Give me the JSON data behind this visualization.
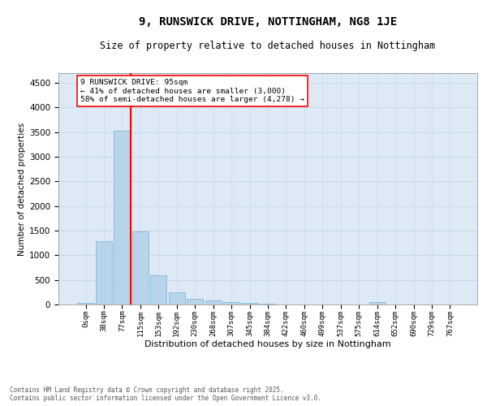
{
  "title": "9, RUNSWICK DRIVE, NOTTINGHAM, NG8 1JE",
  "subtitle": "Size of property relative to detached houses in Nottingham",
  "xlabel": "Distribution of detached houses by size in Nottingham",
  "ylabel": "Number of detached properties",
  "bar_labels": [
    "0sqm",
    "38sqm",
    "77sqm",
    "115sqm",
    "153sqm",
    "192sqm",
    "230sqm",
    "268sqm",
    "307sqm",
    "345sqm",
    "384sqm",
    "422sqm",
    "460sqm",
    "499sqm",
    "537sqm",
    "575sqm",
    "614sqm",
    "652sqm",
    "690sqm",
    "729sqm",
    "767sqm"
  ],
  "bar_values": [
    30,
    1280,
    3530,
    1490,
    590,
    240,
    115,
    80,
    50,
    30,
    15,
    5,
    0,
    0,
    0,
    0,
    45,
    0,
    0,
    0,
    0
  ],
  "bar_color": "#b8d4ea",
  "bar_edge_color": "#7aafd4",
  "grid_color": "#c8d8e8",
  "vline_x": 2.48,
  "vline_color": "red",
  "ylim": [
    0,
    4700
  ],
  "yticks": [
    0,
    500,
    1000,
    1500,
    2000,
    2500,
    3000,
    3500,
    4000,
    4500
  ],
  "annotation_text": "9 RUNSWICK DRIVE: 95sqm\n← 41% of detached houses are smaller (3,000)\n58% of semi-detached houses are larger (4,278) →",
  "footer_line1": "Contains HM Land Registry data © Crown copyright and database right 2025.",
  "footer_line2": "Contains public sector information licensed under the Open Government Licence v3.0.",
  "bg_color": "#ddeaf6",
  "fig_bg_color": "#ffffff",
  "title_fontsize": 10,
  "subtitle_fontsize": 8.5,
  "tick_fontsize": 6.5,
  "ylabel_fontsize": 7.5,
  "xlabel_fontsize": 8
}
